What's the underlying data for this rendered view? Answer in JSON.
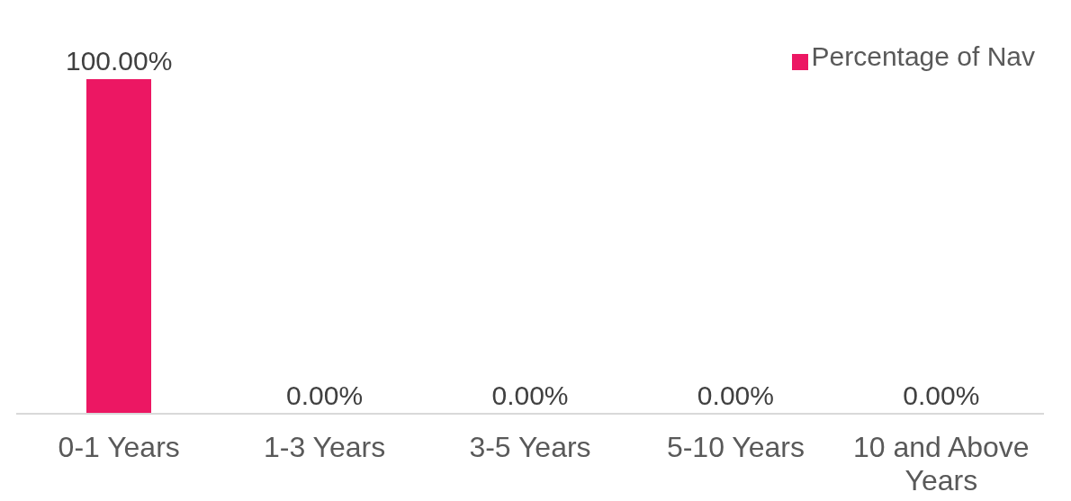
{
  "chart_data": {
    "type": "bar",
    "categories": [
      "0-1 Years",
      "1-3 Years",
      "3-5 Years",
      "5-10 Years",
      "10 and Above Years"
    ],
    "series": [
      {
        "name": "Percentage of Nav",
        "color": "#ec1763",
        "values": [
          100,
          0,
          0,
          0,
          0
        ],
        "value_labels": [
          "100.00%",
          "0.00%",
          "0.00%",
          "0.00%",
          "0.00%"
        ]
      }
    ],
    "legend": "top right"
  }
}
